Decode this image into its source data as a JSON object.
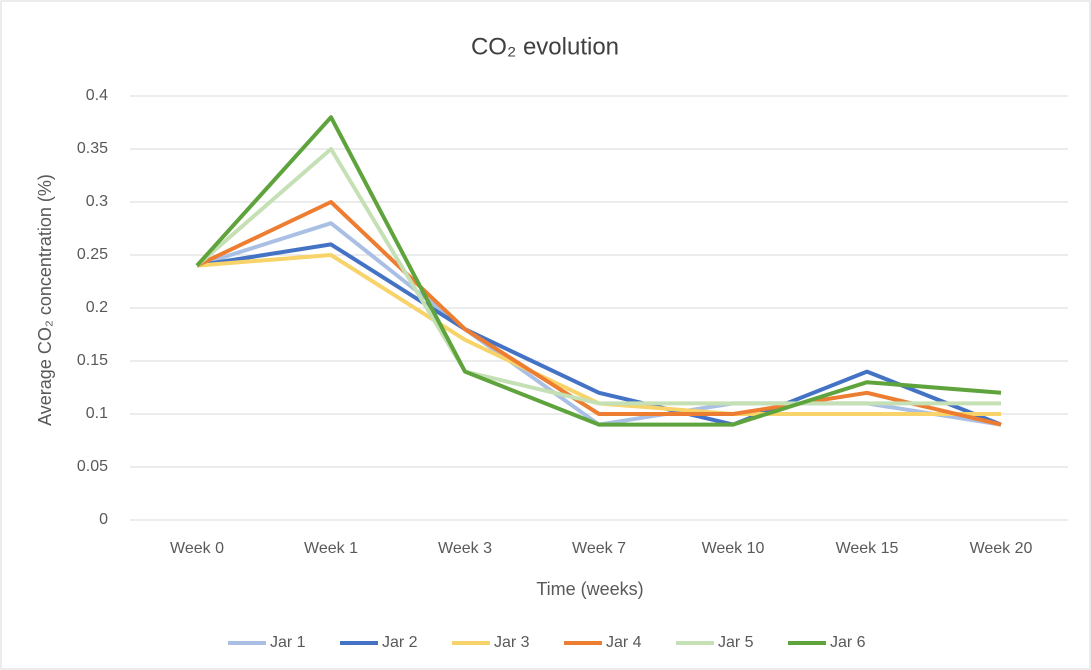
{
  "chart_data": {
    "type": "line",
    "title": "CO₂ evolution",
    "x_label": "Time (weeks)",
    "y_label": "Average CO₂ concentration (%)",
    "categories": [
      "Week 0",
      "Week 1",
      "Week 3",
      "Week 7",
      "Week 10",
      "Week 15",
      "Week 20"
    ],
    "series": [
      {
        "name": "Jar 1",
        "color": "#a9c0e4",
        "values": [
          0.24,
          0.28,
          0.18,
          0.09,
          0.11,
          0.11,
          0.09
        ]
      },
      {
        "name": "Jar 2",
        "color": "#4472c4",
        "values": [
          0.24,
          0.26,
          0.18,
          0.12,
          0.09,
          0.14,
          0.09
        ]
      },
      {
        "name": "Jar 3",
        "color": "#f7d36a",
        "values": [
          0.24,
          0.25,
          0.17,
          0.11,
          0.1,
          0.1,
          0.1
        ]
      },
      {
        "name": "Jar 4",
        "color": "#ed7d31",
        "values": [
          0.24,
          0.3,
          0.18,
          0.1,
          0.1,
          0.12,
          0.09
        ]
      },
      {
        "name": "Jar 5",
        "color": "#c5e0b4",
        "values": [
          0.24,
          0.35,
          0.14,
          0.11,
          0.11,
          0.11,
          0.11
        ]
      },
      {
        "name": "Jar 6",
        "color": "#5fa33c",
        "values": [
          0.24,
          0.38,
          0.14,
          0.09,
          0.09,
          0.13,
          0.12
        ]
      }
    ],
    "ylim": [
      0,
      0.4
    ],
    "yticks": [
      0,
      0.05,
      0.1,
      0.15,
      0.2,
      0.25,
      0.3,
      0.35,
      0.4
    ],
    "grid": true
  }
}
